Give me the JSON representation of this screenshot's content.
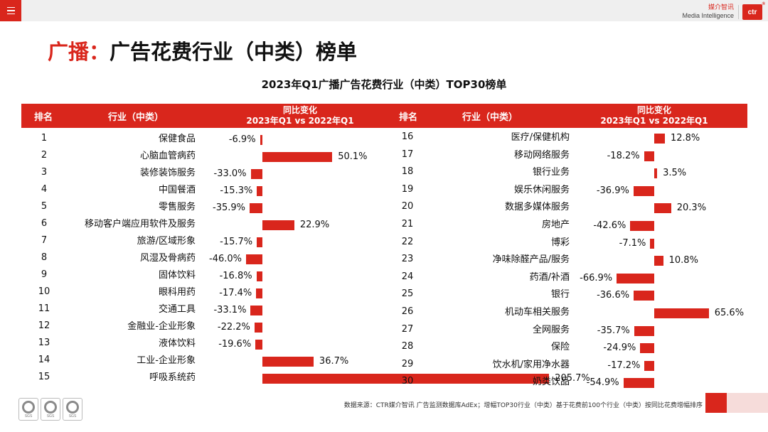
{
  "header": {
    "brand_cn": "媒介智讯",
    "brand_en": "Media Intelligence",
    "badge": "ctr",
    "badge_mark": "®"
  },
  "page_title_accent": "广播：",
  "page_title_main": "广告花费行业（中类）榜单",
  "table_header": {
    "rank": "排名",
    "industry": "行业（中类）",
    "change_line1": "同比变化",
    "change_line2": "2023年Q1 vs 2022年Q1"
  },
  "colors": {
    "accent": "#d9261c"
  },
  "chart_data": {
    "type": "bar",
    "title": "2023年Q1广播广告花费行业（中类）TOP30榜单",
    "unit": "%",
    "items": [
      {
        "rank": "1",
        "name": "保健食品",
        "value": -6.9,
        "label": "-6.9%"
      },
      {
        "rank": "2",
        "name": "心脑血管病药",
        "value": 50.1,
        "label": "50.1%"
      },
      {
        "rank": "3",
        "name": "装修装饰服务",
        "value": -33.0,
        "label": "-33.0%"
      },
      {
        "rank": "4",
        "name": "中国餐酒",
        "value": -15.3,
        "label": "-15.3%"
      },
      {
        "rank": "5",
        "name": "零售服务",
        "value": -35.9,
        "label": "-35.9%"
      },
      {
        "rank": "6",
        "name": "移动客户端应用软件及服务",
        "value": 22.9,
        "label": "22.9%"
      },
      {
        "rank": "7",
        "name": "旅游/区域形象",
        "value": -15.7,
        "label": "-15.7%"
      },
      {
        "rank": "8",
        "name": "风湿及骨病药",
        "value": -46.0,
        "label": "-46.0%"
      },
      {
        "rank": "9",
        "name": "固体饮料",
        "value": -16.8,
        "label": "-16.8%"
      },
      {
        "rank": "10",
        "name": "眼科用药",
        "value": -17.4,
        "label": "-17.4%"
      },
      {
        "rank": "11",
        "name": "交通工具",
        "value": -33.1,
        "label": "-33.1%"
      },
      {
        "rank": "12",
        "name": "金融业-企业形象",
        "value": -22.2,
        "label": "-22.2%"
      },
      {
        "rank": "13",
        "name": "液体饮料",
        "value": -19.6,
        "label": "-19.6%"
      },
      {
        "rank": "14",
        "name": "工业-企业形象",
        "value": 36.7,
        "label": "36.7%"
      },
      {
        "rank": "15",
        "name": "呼吸系统药",
        "value": 205.7,
        "label": "205.7%"
      },
      {
        "rank": "16",
        "name": "医疗/保健机构",
        "value": 12.8,
        "label": "12.8%"
      },
      {
        "rank": "17",
        "name": "移动网络服务",
        "value": -18.2,
        "label": "-18.2%"
      },
      {
        "rank": "18",
        "name": "银行业务",
        "value": 3.5,
        "label": "3.5%"
      },
      {
        "rank": "19",
        "name": "娱乐休闲服务",
        "value": -36.9,
        "label": "-36.9%"
      },
      {
        "rank": "20",
        "name": "数据多媒体服务",
        "value": 20.3,
        "label": "20.3%"
      },
      {
        "rank": "21",
        "name": "房地产",
        "value": -42.6,
        "label": "-42.6%"
      },
      {
        "rank": "22",
        "name": "博彩",
        "value": -7.1,
        "label": "-7.1%"
      },
      {
        "rank": "23",
        "name": "净味除醛产品/服务",
        "value": 10.8,
        "label": "10.8%"
      },
      {
        "rank": "24",
        "name": "药酒/补酒",
        "value": -66.9,
        "label": "-66.9%"
      },
      {
        "rank": "25",
        "name": "银行",
        "value": -36.6,
        "label": "-36.6%"
      },
      {
        "rank": "26",
        "name": "机动车相关服务",
        "value": 65.6,
        "label": "65.6%"
      },
      {
        "rank": "27",
        "name": "全网服务",
        "value": -35.7,
        "label": "-35.7%"
      },
      {
        "rank": "28",
        "name": "保险",
        "value": -24.9,
        "label": "-24.9%"
      },
      {
        "rank": "29",
        "name": "饮水机/家用净水器",
        "value": -17.2,
        "label": "-17.2%"
      },
      {
        "rank": "30",
        "name": "奶类饮品",
        "value": -54.9,
        "label": "-54.9%"
      }
    ]
  },
  "source_note": "数据来源：CTR媒介智讯 广告监测数据库AdEx；增幅TOP30行业（中类）基于花费前100个行业（中类）按同比花费增幅排序",
  "cert_label": "SGS"
}
